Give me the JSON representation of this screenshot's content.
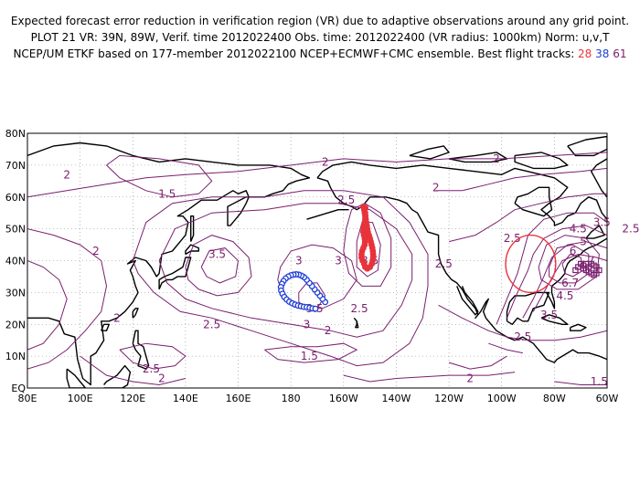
{
  "title": {
    "line1": "Expected forecast error reduction in verification region (VR) due to adaptive observations around any grid point.",
    "line2": "PLOT 21 VR: 39N, 89W, Verif. time 2012022400 Obs. time: 2012022400 (VR radius: 1000km) Norm: u,v,T",
    "line3_prefix": "NCEP/UM ETKF based on 177-member 2012022100 NCEP+ECMWF+CMC ensemble. Best flight tracks: ",
    "track_28": "28",
    "track_38": "38",
    "track_61": "61"
  },
  "colors": {
    "contour": "#7a1e6e",
    "track_28": "#e8333a",
    "track_38": "#1f3ed6",
    "track_61": "#7a1e6e",
    "grid": "#888888"
  },
  "axes": {
    "lon_labels": [
      "80E",
      "100E",
      "120E",
      "140E",
      "160E",
      "180",
      "160W",
      "140W",
      "120W",
      "100W",
      "80W",
      "60W"
    ],
    "lat_labels": [
      "EQ",
      "10N",
      "20N",
      "30N",
      "40N",
      "50N",
      "60N",
      "70N",
      "80N"
    ]
  },
  "contour_labels": [
    {
      "text": "2",
      "lon": 95,
      "lat": 67
    },
    {
      "text": "1.5",
      "lon": 133,
      "lat": 61
    },
    {
      "text": "2",
      "lon": 193,
      "lat": 71
    },
    {
      "text": "2.5",
      "lon": 201,
      "lat": 59
    },
    {
      "text": "2",
      "lon": 235,
      "lat": 63
    },
    {
      "text": "2",
      "lon": 258,
      "lat": 72
    },
    {
      "text": "2",
      "lon": 106,
      "lat": 43
    },
    {
      "text": "3.5",
      "lon": 152,
      "lat": 42
    },
    {
      "text": "3",
      "lon": 183,
      "lat": 40
    },
    {
      "text": "3",
      "lon": 198,
      "lat": 40
    },
    {
      "text": "2.5",
      "lon": 238,
      "lat": 39
    },
    {
      "text": "3.5",
      "lon": 210,
      "lat": 40
    },
    {
      "text": "2.5",
      "lon": 264,
      "lat": 47
    },
    {
      "text": "2",
      "lon": 114,
      "lat": 22
    },
    {
      "text": "2.5",
      "lon": 150,
      "lat": 20
    },
    {
      "text": "3.5",
      "lon": 189,
      "lat": 25
    },
    {
      "text": "3",
      "lon": 186,
      "lat": 20
    },
    {
      "text": "2.5",
      "lon": 206,
      "lat": 25
    },
    {
      "text": "2",
      "lon": 194,
      "lat": 18
    },
    {
      "text": "1.5",
      "lon": 187,
      "lat": 10
    },
    {
      "text": "2.5",
      "lon": 127,
      "lat": 6
    },
    {
      "text": "2",
      "lon": 131,
      "lat": 3
    },
    {
      "text": "2",
      "lon": 248,
      "lat": 3
    },
    {
      "text": "2.5",
      "lon": 268,
      "lat": 16
    },
    {
      "text": "1.5",
      "lon": 297,
      "lat": 2
    },
    {
      "text": "3.5",
      "lon": 278,
      "lat": 23
    },
    {
      "text": "4.5",
      "lon": 284,
      "lat": 29
    },
    {
      "text": "4.5",
      "lon": 289,
      "lat": 50
    },
    {
      "text": "5",
      "lon": 291,
      "lat": 46
    },
    {
      "text": "6",
      "lon": 287,
      "lat": 43
    },
    {
      "text": "7",
      "lon": 294,
      "lat": 40
    },
    {
      "text": "6.7",
      "lon": 286,
      "lat": 33
    },
    {
      "text": "3.5",
      "lon": 298,
      "lat": 52
    },
    {
      "text": "2.5",
      "lon": 309,
      "lat": 50
    }
  ],
  "verification_region": {
    "center_lon": 271,
    "center_lat": 39
  },
  "flight_track_28": [
    [
      207.5,
      57
    ],
    [
      207.8,
      56
    ],
    [
      208,
      55
    ],
    [
      208.2,
      54
    ],
    [
      208.2,
      53
    ],
    [
      208,
      52
    ],
    [
      207.8,
      51
    ],
    [
      207.5,
      50
    ],
    [
      207.5,
      49
    ],
    [
      207.7,
      48
    ],
    [
      208,
      47
    ],
    [
      208.1,
      46
    ],
    [
      208,
      45
    ],
    [
      207.5,
      44
    ],
    [
      207,
      43
    ],
    [
      206.8,
      42
    ],
    [
      206.8,
      41
    ],
    [
      207.2,
      40
    ],
    [
      207.8,
      39
    ],
    [
      208.2,
      38
    ],
    [
      209,
      37.5
    ],
    [
      210,
      38
    ],
    [
      210.7,
      39
    ],
    [
      211,
      40
    ],
    [
      211.2,
      41
    ],
    [
      211.2,
      42
    ],
    [
      211.1,
      43
    ],
    [
      210.9,
      44
    ],
    [
      210.6,
      45
    ],
    [
      210.3,
      46
    ],
    [
      210,
      47
    ],
    [
      209.6,
      48
    ],
    [
      209.2,
      49
    ],
    [
      209,
      50
    ],
    [
      208.8,
      51
    ],
    [
      208.6,
      52
    ],
    [
      208.4,
      53
    ],
    [
      208.3,
      54
    ],
    [
      208.2,
      55
    ],
    [
      208.3,
      56.5
    ]
  ],
  "flight_track_38": [
    [
      193,
      27
    ],
    [
      192,
      28
    ],
    [
      191,
      29
    ],
    [
      190,
      30
    ],
    [
      189,
      31
    ],
    [
      188,
      32
    ],
    [
      187,
      33
    ],
    [
      186,
      34
    ],
    [
      185,
      34.8
    ],
    [
      184,
      35.3
    ],
    [
      183,
      35.6
    ],
    [
      182,
      35.7
    ],
    [
      181,
      35.6
    ],
    [
      180,
      35.4
    ],
    [
      179,
      35
    ],
    [
      178,
      34.4
    ],
    [
      177.2,
      33.6
    ],
    [
      176.6,
      32.7
    ],
    [
      176.2,
      31.7
    ],
    [
      176.3,
      30.6
    ],
    [
      176.8,
      29.6
    ],
    [
      177.5,
      28.6
    ],
    [
      178.4,
      27.8
    ],
    [
      179.4,
      27.1
    ],
    [
      180.5,
      26.6
    ],
    [
      181.6,
      26.2
    ],
    [
      182.7,
      25.9
    ],
    [
      183.8,
      25.7
    ],
    [
      184.9,
      25.5
    ],
    [
      186,
      25.4
    ],
    [
      187.1,
      25.2
    ],
    [
      188.2,
      25
    ],
    [
      189.3,
      24.9
    ]
  ],
  "flight_track_61": [
    [
      288,
      37
    ],
    [
      289,
      38
    ],
    [
      290,
      39
    ],
    [
      291,
      38.5
    ],
    [
      292,
      39
    ],
    [
      293,
      38
    ],
    [
      294,
      39
    ],
    [
      295,
      38.5
    ],
    [
      296,
      38
    ],
    [
      297,
      37
    ],
    [
      296,
      36
    ],
    [
      295,
      35.5
    ],
    [
      294,
      36
    ],
    [
      293,
      36.5
    ],
    [
      292,
      37
    ],
    [
      291,
      37.5
    ]
  ]
}
